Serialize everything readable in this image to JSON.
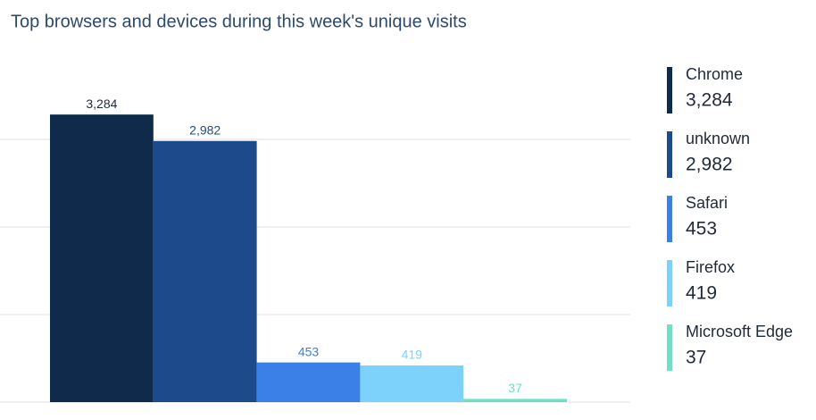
{
  "chart_data": {
    "type": "bar",
    "title": "Top browsers and devices during this week's unique visits",
    "categories": [
      "Chrome",
      "unknown",
      "Safari",
      "Firefox",
      "Microsoft Edge"
    ],
    "values": [
      3284,
      2982,
      453,
      419,
      37
    ],
    "value_labels": [
      "3,284",
      "2,982",
      "453",
      "419",
      "37"
    ],
    "colors": [
      "#0f2a4b",
      "#1d4a8b",
      "#3a80e6",
      "#7dd2fb",
      "#6fe0c6"
    ],
    "ylim": [
      0,
      3500
    ],
    "yticks": [
      0,
      1000,
      2000,
      3000
    ],
    "grid": true,
    "legend": "right"
  }
}
